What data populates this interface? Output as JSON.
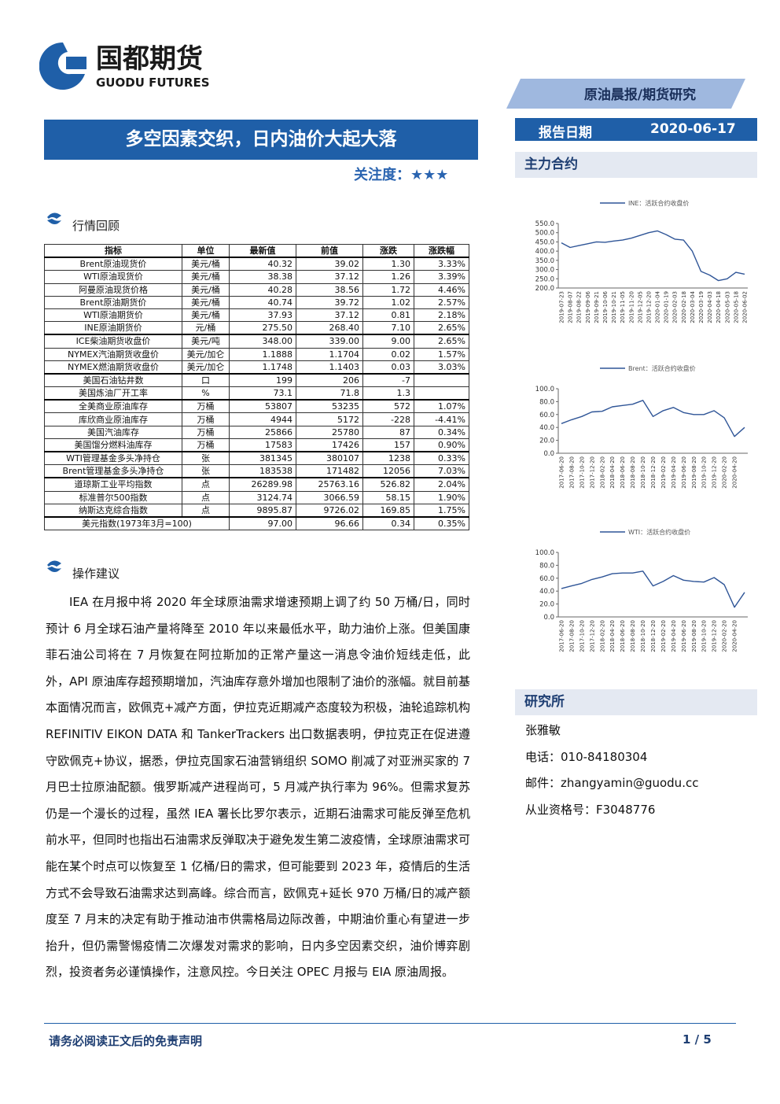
{
  "header": {
    "logo_cn": "国都期货",
    "logo_en": "GUODU FUTURES",
    "category": "原油晨报/期货研究",
    "date_label": "报告日期",
    "date": "2020-06-17",
    "title": "多空因素交织，日内油价大起大落",
    "attention_label": "关注度：",
    "attention_stars": "★★★"
  },
  "review": {
    "title": "行情回顾"
  },
  "table": {
    "header": [
      "指标",
      "单位",
      "最新值",
      "前值",
      "涨跌",
      "涨跌幅"
    ],
    "groups": [
      [
        [
          "Brent原油现货价",
          "美元/桶",
          "40.32",
          "39.02",
          "1.30",
          "3.33%"
        ],
        [
          "WTI原油现货价",
          "美元/桶",
          "38.38",
          "37.12",
          "1.26",
          "3.39%"
        ],
        [
          "阿曼原油现货价格",
          "美元/桶",
          "40.28",
          "38.56",
          "1.72",
          "4.46%"
        ],
        [
          "Brent原油期货价",
          "美元/桶",
          "40.74",
          "39.72",
          "1.02",
          "2.57%"
        ],
        [
          "WTI原油期货价",
          "美元/桶",
          "37.93",
          "37.12",
          "0.81",
          "2.18%"
        ],
        [
          "INE原油期货价",
          "元/桶",
          "275.50",
          "268.40",
          "7.10",
          "2.65%"
        ]
      ],
      [
        [
          "ICE柴油期货收盘价",
          "美元/吨",
          "348.00",
          "339.00",
          "9.00",
          "2.65%"
        ],
        [
          "NYMEX汽油期货收盘价",
          "美元/加仑",
          "1.1888",
          "1.1704",
          "0.02",
          "1.57%"
        ],
        [
          "NYMEX燃油期货收盘价",
          "美元/加仑",
          "1.1748",
          "1.1403",
          "0.03",
          "3.03%"
        ]
      ],
      [
        [
          "美国石油钻井数",
          "口",
          "199",
          "206",
          "-7"
        ],
        [
          "美国炼油厂开工率",
          "%",
          "73.1",
          "71.8",
          "1.3"
        ]
      ],
      [
        [
          "全美商业原油库存",
          "万桶",
          "53807",
          "53235",
          "572",
          "1.07%"
        ],
        [
          "库欣商业原油库存",
          "万桶",
          "4944",
          "5172",
          "-228",
          "-4.41%"
        ],
        [
          "美国汽油库存",
          "万桶",
          "25866",
          "25780",
          "87",
          "0.34%"
        ],
        [
          "美国馏分燃料油库存",
          "万桶",
          "17583",
          "17426",
          "157",
          "0.90%"
        ]
      ],
      [
        [
          "WTI管理基金多头净持仓",
          "张",
          "381345",
          "380107",
          "1238",
          "0.33%"
        ],
        [
          "Brent管理基金多头净持仓",
          "张",
          "183538",
          "171482",
          "12056",
          "7.03%"
        ]
      ],
      [
        [
          "道琼斯工业平均指数",
          "点",
          "26289.98",
          "25763.16",
          "526.82",
          "2.04%"
        ],
        [
          "标准普尔500指数",
          "点",
          "3124.74",
          "3066.59",
          "58.15",
          "1.90%"
        ],
        [
          "纳斯达克综合指数",
          "点",
          "9895.87",
          "9726.02",
          "169.85",
          "1.75%"
        ]
      ]
    ],
    "footer_row": [
      "美元指数(1973年3月=100)",
      "97.00",
      "96.66",
      "0.34",
      "0.35%"
    ]
  },
  "advice": {
    "title": "操作建议",
    "text": "IEA 在月报中将 2020 年全球原油需求增速预期上调了约 50 万桶/日，同时预计 6 月全球石油产量将降至 2010 年以来最低水平，助力油价上涨。但美国康菲石油公司将在 7 月恢复在阿拉斯加的正常产量这一消息令油价短线走低，此外，API 原油库存超预期增加，汽油库存意外增加也限制了油价的涨幅。就目前基本面情况而言，欧佩克+减产方面，伊拉克近期减产态度较为积极，油轮追踪机构 REFINITIV EIKON DATA 和 TankerTrackers 出口数据表明，伊拉克正在促进遵守欧佩克+协议，据悉，伊拉克国家石油营销组织 SOMO 削减了对亚洲买家的 7 月巴士拉原油配额。俄罗斯减产进程尚可，5 月减产执行率为 96%。但需求复苏仍是一个漫长的过程，虽然 IEA 署长比罗尔表示，近期石油需求可能反弹至危机前水平，但同时也指出石油需求反弹取决于避免发生第二波疫情，全球原油需求可能在某个时点可以恢复至 1 亿桶/日的需求，但可能要到 2023 年，疫情后的生活方式不会导致石油需求达到高峰。综合而言，欧佩克+延长 970 万桶/日的减产额度至 7 月末的决定有助于推动油市供需格局边际改善，中期油价重心有望进一步抬升，但仍需警惕疫情二次爆发对需求的影响，日内多空因素交织，油价博弈剧烈，投资者务必谨慎操作，注意风控。今日关注 OPEC 月报与 EIA 原油周报。"
  },
  "sidebar": {
    "main_contract": "主力合约",
    "research_title": "研究所",
    "analyst": "张雅敏",
    "phone": "电话：010-84180304",
    "email": "邮件：zhangyamin@guodu.cc",
    "license": "从业资格号：F3048776"
  },
  "chart_data": [
    {
      "type": "line",
      "categories": [
        "2019-07-23",
        "2019-08-07",
        "2019-08-22",
        "2019-09-06",
        "2019-09-21",
        "2019-10-06",
        "2019-10-21",
        "2019-11-05",
        "2019-11-20",
        "2019-12-05",
        "2019-12-20",
        "2020-01-04",
        "2020-01-19",
        "2020-02-03",
        "2020-02-18",
        "2020-03-04",
        "2020-03-19",
        "2020-04-03",
        "2020-04-18",
        "2020-05-03",
        "2020-05-18",
        "2020-06-02"
      ],
      "series": [
        {
          "name": "INE：活跃合约收盘价",
          "color": "#2f5597",
          "values": [
            445,
            420,
            430,
            440,
            450,
            448,
            455,
            460,
            470,
            485,
            500,
            510,
            490,
            465,
            460,
            400,
            290,
            270,
            240,
            250,
            285,
            275
          ]
        }
      ],
      "ylim": [
        200,
        550
      ],
      "yticks": [
        {
          "value": 200,
          "label": "200.0"
        },
        {
          "value": 250,
          "label": "250.0"
        },
        {
          "value": 300,
          "label": "300.0"
        },
        {
          "value": 350,
          "label": "350.0"
        },
        {
          "value": 400,
          "label": "400.0"
        },
        {
          "value": 450,
          "label": "450.0"
        },
        {
          "value": 500,
          "label": "500.0"
        },
        {
          "value": 550,
          "label": "550.0"
        }
      ]
    },
    {
      "type": "line",
      "categories": [
        "2017-06-20",
        "2017-08-20",
        "2017-10-20",
        "2017-12-20",
        "2018-02-20",
        "2018-04-20",
        "2018-06-20",
        "2018-08-20",
        "2018-10-20",
        "2018-12-20",
        "2019-02-20",
        "2019-04-20",
        "2019-06-20",
        "2019-08-20",
        "2019-10-20",
        "2019-12-20",
        "2020-02-20",
        "2020-04-20",
        null
      ],
      "series": [
        {
          "name": "Brent：活跃合约收盘价",
          "color": "#2f5597",
          "values": [
            46,
            52,
            57,
            64,
            65,
            72,
            74,
            76,
            82,
            57,
            66,
            71,
            63,
            60,
            60,
            66,
            55,
            26,
            40
          ]
        }
      ],
      "ylim": [
        0,
        100
      ],
      "yticks": [
        {
          "value": 0,
          "label": "0.0"
        },
        {
          "value": 20,
          "label": "20.0"
        },
        {
          "value": 40,
          "label": "40.0"
        },
        {
          "value": 60,
          "label": "60.0"
        },
        {
          "value": 80,
          "label": "80.0"
        },
        {
          "value": 100,
          "label": "100.0"
        }
      ]
    },
    {
      "type": "line",
      "categories": [
        "2017-06-20",
        "2017-08-20",
        "2017-10-20",
        "2017-12-20",
        "2018-02-20",
        "2018-04-20",
        "2018-06-20",
        "2018-08-20",
        "2018-10-20",
        "2018-12-20",
        "2019-02-20",
        "2019-04-20",
        "2019-06-20",
        "2019-08-20",
        "2019-10-20",
        "2019-12-20",
        "2020-02-20",
        "2020-04-20",
        null
      ],
      "series": [
        {
          "name": "WTI：活跃合约收盘价",
          "color": "#2f5597",
          "values": [
            44,
            48,
            52,
            58,
            62,
            67,
            68,
            68,
            71,
            48,
            55,
            64,
            57,
            55,
            54,
            61,
            50,
            15,
            38
          ]
        }
      ],
      "ylim": [
        0,
        100
      ],
      "yticks": [
        {
          "value": 0,
          "label": "0.0"
        },
        {
          "value": 20,
          "label": "20.0"
        },
        {
          "value": 40,
          "label": "40.0"
        },
        {
          "value": 60,
          "label": "60.0"
        },
        {
          "value": 80,
          "label": "80.0"
        },
        {
          "value": 100,
          "label": "100.0"
        }
      ]
    }
  ],
  "footer": {
    "disclaimer": "请务必阅读正文后的免责声明",
    "page": "1 / 5"
  }
}
